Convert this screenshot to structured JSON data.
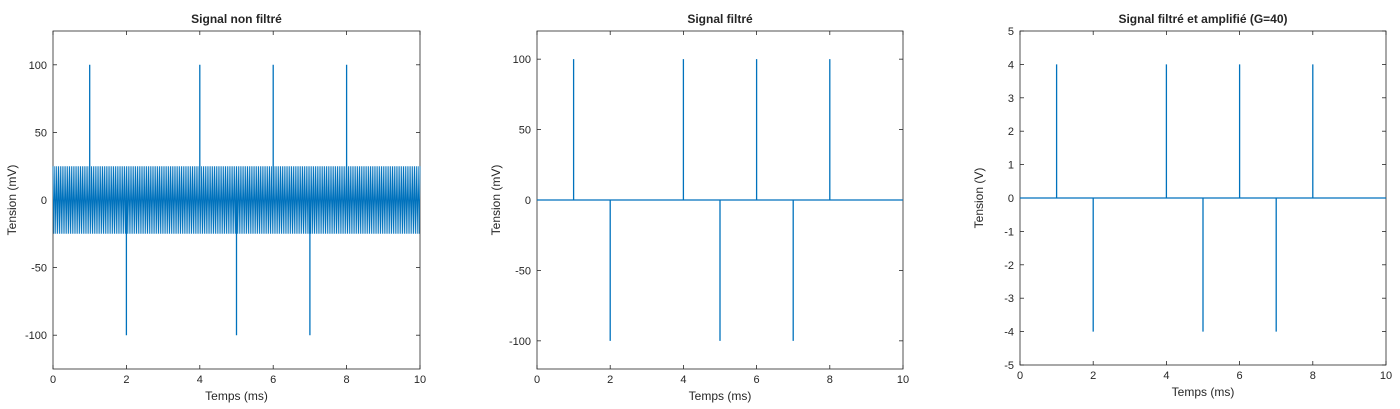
{
  "figure": {
    "background": "#ffffff",
    "line_color": "#0072bd",
    "axis_color": "#262626"
  },
  "chart_data": [
    {
      "type": "line",
      "title": "Signal non filtré",
      "xlabel": "Temps (ms)",
      "ylabel": "Tension (mV)",
      "xlim": [
        0,
        10
      ],
      "ylim": [
        -125,
        125
      ],
      "xticks": [
        0,
        2,
        4,
        6,
        8,
        10
      ],
      "yticks": [
        -100,
        -50,
        0,
        50,
        100
      ],
      "grid": false,
      "series": [
        {
          "style": "spikes",
          "baseline": 0,
          "spikes": [
            {
              "x": 1,
              "y": 100
            },
            {
              "x": 2,
              "y": -100
            },
            {
              "x": 4,
              "y": 100
            },
            {
              "x": 5,
              "y": -100
            },
            {
              "x": 6,
              "y": 100
            },
            {
              "x": 7,
              "y": -100
            },
            {
              "x": 8,
              "y": 100
            }
          ],
          "noise": {
            "amplitude": 25,
            "cycles": 200
          }
        }
      ]
    },
    {
      "type": "line",
      "title": "Signal filtré",
      "xlabel": "Temps (ms)",
      "ylabel": "Tension (mV)",
      "xlim": [
        0,
        10
      ],
      "ylim": [
        -120,
        120
      ],
      "xticks": [
        0,
        2,
        4,
        6,
        8,
        10
      ],
      "yticks": [
        -100,
        -50,
        0,
        50,
        100
      ],
      "grid": false,
      "series": [
        {
          "style": "spikes",
          "baseline": 0,
          "spikes": [
            {
              "x": 1,
              "y": 100
            },
            {
              "x": 2,
              "y": -100
            },
            {
              "x": 4,
              "y": 100
            },
            {
              "x": 5,
              "y": -100
            },
            {
              "x": 6,
              "y": 100
            },
            {
              "x": 7,
              "y": -100
            },
            {
              "x": 8,
              "y": 100
            }
          ]
        }
      ]
    },
    {
      "type": "line",
      "title": "Signal filtré et amplifié (G=40)",
      "xlabel": "Temps (ms)",
      "ylabel": "Tension (V)",
      "xlim": [
        0,
        10
      ],
      "ylim": [
        -5,
        5
      ],
      "xticks": [
        0,
        2,
        4,
        6,
        8,
        10
      ],
      "yticks": [
        -5,
        -4,
        -3,
        -2,
        -1,
        0,
        1,
        2,
        3,
        4,
        5
      ],
      "grid": false,
      "series": [
        {
          "style": "spikes",
          "baseline": 0,
          "spikes": [
            {
              "x": 1,
              "y": 4
            },
            {
              "x": 2,
              "y": -4
            },
            {
              "x": 4,
              "y": 4
            },
            {
              "x": 5,
              "y": -4
            },
            {
              "x": 6,
              "y": 4
            },
            {
              "x": 7,
              "y": -4
            },
            {
              "x": 8,
              "y": 4
            }
          ]
        }
      ]
    }
  ]
}
